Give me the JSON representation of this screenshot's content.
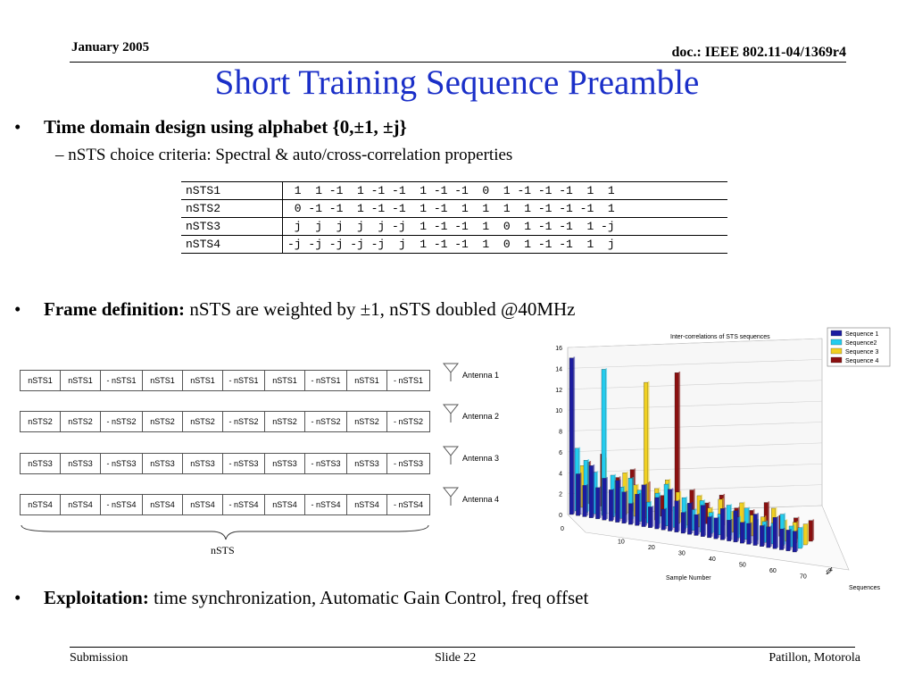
{
  "header": {
    "date": "January 2005",
    "doc": "doc.: IEEE 802.11-04/1369r4"
  },
  "title": "Short Training Sequence Preamble",
  "bullets": [
    {
      "bold": "Time domain design using alphabet {0,±1, ±j}",
      "normal": ""
    },
    {
      "bold": "Frame definition:",
      "normal": " nSTS are weighted by ±1, nSTS doubled @40MHz"
    },
    {
      "bold": "Exploitation:",
      "normal": " time synchronization, Automatic Gain Control, freq offset"
    }
  ],
  "sub_bullet": "–  nSTS choice criteria: Spectral & auto/cross-correlation properties",
  "sts_table": [
    {
      "name": "nSTS1",
      "values": " 1  1 -1  1 -1 -1  1 -1 -1  0  1 -1 -1 -1  1  1"
    },
    {
      "name": "nSTS2",
      "values": " 0 -1 -1  1 -1 -1  1 -1  1  1  1  1 -1 -1 -1  1"
    },
    {
      "name": "nSTS3",
      "values": " j  j  j  j  j -j  1 -1 -1  1  0  1 -1 -1  1 -j"
    },
    {
      "name": "nSTS4",
      "values": "-j -j -j -j -j  j  1 -1 -1  1  0  1 -1 -1  1  j"
    }
  ],
  "frames": [
    {
      "cells": [
        "nSTS1",
        "nSTS1",
        "- nSTS1",
        "nSTS1",
        "nSTS1",
        "- nSTS1",
        "nSTS1",
        "- nSTS1",
        "nSTS1",
        "- nSTS1"
      ],
      "antenna": "Antenna 1"
    },
    {
      "cells": [
        "nSTS2",
        "nSTS2",
        "- nSTS2",
        "nSTS2",
        "nSTS2",
        "- nSTS2",
        "nSTS2",
        "- nSTS2",
        "nSTS2",
        "- nSTS2"
      ],
      "antenna": "Antenna 2"
    },
    {
      "cells": [
        "nSTS3",
        "nSTS3",
        "- nSTS3",
        "nSTS3",
        "nSTS3",
        "- nSTS3",
        "nSTS3",
        "- nSTS3",
        "nSTS3",
        "- nSTS3"
      ],
      "antenna": "Antenna 3"
    },
    {
      "cells": [
        "nSTS4",
        "nSTS4",
        "- nSTS4",
        "nSTS4",
        "nSTS4",
        "- nSTS4",
        "nSTS4",
        "- nSTS4",
        "nSTS4",
        "- nSTS4"
      ],
      "antenna": "Antenna 4"
    }
  ],
  "brace_label": "nSTS",
  "chart_data": {
    "type": "bar",
    "title": "Inter-correlations of STS sequences",
    "xlabel": "Sample Number",
    "zlabel": "Sequences",
    "y_ticks": [
      "0",
      "2",
      "4",
      "6",
      "8",
      "10",
      "12",
      "14",
      "16"
    ],
    "x_ticks": [
      "0",
      "10",
      "20",
      "30",
      "40",
      "50",
      "60",
      "70"
    ],
    "seq_ticks": [
      "1",
      "2",
      "3",
      "4"
    ],
    "legend_position": "top-right",
    "series": [
      {
        "name": "Sequence 1",
        "color": "#1c1ca0",
        "values": [
          15,
          4,
          3,
          5,
          3,
          4,
          3,
          4,
          3,
          2,
          3,
          4,
          2,
          3,
          2,
          4,
          3,
          2,
          3,
          2,
          3,
          2,
          2,
          3,
          2,
          3,
          2,
          2,
          3,
          2,
          2,
          3,
          2,
          2,
          2
        ]
      },
      {
        "name": "Sequence2",
        "color": "#22ccee",
        "values": [
          6,
          5,
          4,
          14,
          4,
          3,
          4,
          3,
          2,
          3,
          4,
          2,
          3,
          2,
          3,
          2,
          2,
          3,
          2,
          3,
          2,
          2,
          2,
          3,
          2,
          2
        ]
      },
      {
        "name": "Sequence 3",
        "color": "#f0d020",
        "values": [
          4,
          3,
          5,
          3,
          4,
          3,
          13,
          3,
          4,
          3,
          2,
          3,
          2,
          3,
          2,
          3,
          2,
          2,
          3,
          2,
          2,
          2
        ]
      },
      {
        "name": "Sequence 4",
        "color": "#8b1010",
        "values": [
          4,
          5,
          3,
          4,
          3,
          2,
          14,
          3,
          2,
          3,
          2,
          2,
          3,
          2,
          2,
          2
        ]
      }
    ]
  },
  "footer": {
    "left": "Submission",
    "center": "Slide 22",
    "right": "Patillon, Motorola"
  }
}
